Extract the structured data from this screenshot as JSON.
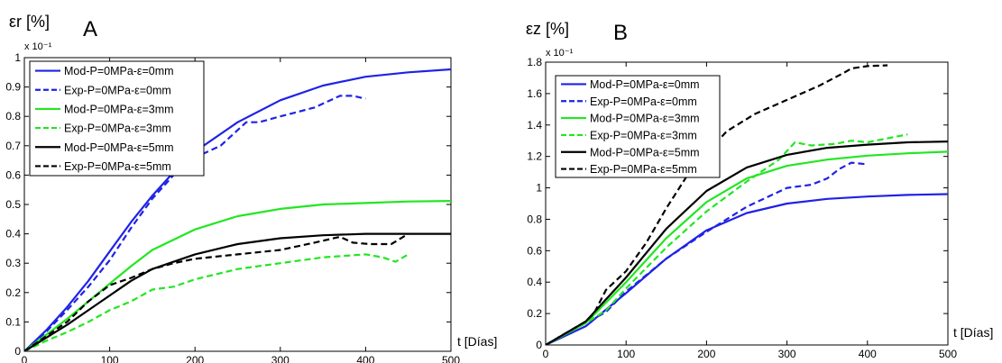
{
  "colors": {
    "blue": "#1f22e6",
    "green": "#22e622",
    "black": "#000000"
  },
  "chart_data": [
    {
      "type": "line",
      "panel_letter": "A",
      "ylabel": "εr [%]",
      "xlabel": "t [Días]",
      "y_multiplier": "x 10⁻¹",
      "xlim": [
        0,
        500
      ],
      "ylim": [
        0,
        1
      ],
      "xticks": [
        "0",
        "100",
        "200",
        "300",
        "400",
        "500"
      ],
      "yticks": [
        "0",
        "0.1",
        "0.2",
        "0.3",
        "0.4",
        "0.5",
        "0.6",
        "0.7",
        "0.8",
        "0.9",
        "1"
      ],
      "legend_position": "top-left",
      "series": [
        {
          "name": "Mod-P=0MPa-ε=0mm",
          "color": "#1f22e6",
          "dash": false,
          "points": [
            [
              0,
              0
            ],
            [
              25,
              0.07
            ],
            [
              50,
              0.15
            ],
            [
              75,
              0.24
            ],
            [
              100,
              0.34
            ],
            [
              125,
              0.44
            ],
            [
              150,
              0.53
            ],
            [
              175,
              0.61
            ],
            [
              200,
              0.68
            ],
            [
              250,
              0.78
            ],
            [
              300,
              0.855
            ],
            [
              350,
              0.905
            ],
            [
              400,
              0.935
            ],
            [
              450,
              0.95
            ],
            [
              500,
              0.96
            ]
          ]
        },
        {
          "name": "Exp-P=0MPa-ε=0mm",
          "color": "#1f22e6",
          "dash": true,
          "points": [
            [
              0,
              0
            ],
            [
              25,
              0.065
            ],
            [
              50,
              0.14
            ],
            [
              75,
              0.22
            ],
            [
              100,
              0.31
            ],
            [
              125,
              0.42
            ],
            [
              150,
              0.52
            ],
            [
              175,
              0.6
            ],
            [
              200,
              0.66
            ],
            [
              230,
              0.7
            ],
            [
              260,
              0.78
            ],
            [
              275,
              0.78
            ],
            [
              300,
              0.8
            ],
            [
              340,
              0.83
            ],
            [
              370,
              0.87
            ],
            [
              385,
              0.87
            ],
            [
              400,
              0.86
            ]
          ]
        },
        {
          "name": "Mod-P=0MPa-ε=3mm",
          "color": "#22e622",
          "dash": false,
          "points": [
            [
              0,
              0
            ],
            [
              25,
              0.055
            ],
            [
              50,
              0.11
            ],
            [
              75,
              0.17
            ],
            [
              100,
              0.23
            ],
            [
              125,
              0.29
            ],
            [
              150,
              0.345
            ],
            [
              200,
              0.415
            ],
            [
              250,
              0.46
            ],
            [
              300,
              0.485
            ],
            [
              350,
              0.5
            ],
            [
              400,
              0.505
            ],
            [
              450,
              0.51
            ],
            [
              500,
              0.512
            ]
          ]
        },
        {
          "name": "Exp-P=0MPa-ε=3mm",
          "color": "#22e622",
          "dash": true,
          "points": [
            [
              0,
              0
            ],
            [
              25,
              0.035
            ],
            [
              50,
              0.065
            ],
            [
              75,
              0.1
            ],
            [
              100,
              0.14
            ],
            [
              125,
              0.17
            ],
            [
              150,
              0.21
            ],
            [
              175,
              0.22
            ],
            [
              200,
              0.245
            ],
            [
              250,
              0.28
            ],
            [
              300,
              0.3
            ],
            [
              350,
              0.32
            ],
            [
              400,
              0.33
            ],
            [
              420,
              0.32
            ],
            [
              435,
              0.305
            ],
            [
              450,
              0.33
            ]
          ]
        },
        {
          "name": "Mod-P=0MPa-ε=5mm",
          "color": "#000000",
          "dash": false,
          "points": [
            [
              0,
              0
            ],
            [
              25,
              0.045
            ],
            [
              50,
              0.09
            ],
            [
              75,
              0.14
            ],
            [
              100,
              0.19
            ],
            [
              125,
              0.24
            ],
            [
              150,
              0.28
            ],
            [
              200,
              0.33
            ],
            [
              250,
              0.365
            ],
            [
              300,
              0.385
            ],
            [
              350,
              0.395
            ],
            [
              400,
              0.4
            ],
            [
              500,
              0.4
            ]
          ]
        },
        {
          "name": "Exp-P=0MPa-ε=5mm",
          "color": "#000000",
          "dash": true,
          "points": [
            [
              0,
              0
            ],
            [
              50,
              0.1
            ],
            [
              75,
              0.17
            ],
            [
              100,
              0.225
            ],
            [
              125,
              0.25
            ],
            [
              150,
              0.28
            ],
            [
              175,
              0.3
            ],
            [
              200,
              0.315
            ],
            [
              250,
              0.33
            ],
            [
              300,
              0.345
            ],
            [
              340,
              0.37
            ],
            [
              370,
              0.39
            ],
            [
              385,
              0.37
            ],
            [
              405,
              0.365
            ],
            [
              430,
              0.365
            ],
            [
              450,
              0.4
            ]
          ]
        }
      ]
    },
    {
      "type": "line",
      "panel_letter": "B",
      "ylabel": "εz [%]",
      "xlabel": "t [Días]",
      "y_multiplier": "x 10⁻¹",
      "xlim": [
        0,
        500
      ],
      "ylim": [
        0,
        1.8
      ],
      "xticks": [
        "0",
        "100",
        "200",
        "300",
        "400",
        "500"
      ],
      "yticks": [
        "0",
        "0.2",
        "0.4",
        "0.6",
        "0.8",
        "1",
        "1.2",
        "1.4",
        "1.6",
        "1.8"
      ],
      "legend_position": "top-left",
      "series": [
        {
          "name": "Mod-P=0MPa-ε=0mm",
          "color": "#1f22e6",
          "dash": false,
          "points": [
            [
              0,
              0
            ],
            [
              50,
              0.12
            ],
            [
              100,
              0.33
            ],
            [
              150,
              0.55
            ],
            [
              200,
              0.73
            ],
            [
              250,
              0.84
            ],
            [
              300,
              0.9
            ],
            [
              350,
              0.93
            ],
            [
              400,
              0.945
            ],
            [
              450,
              0.955
            ],
            [
              500,
              0.96
            ]
          ]
        },
        {
          "name": "Exp-P=0MPa-ε=0mm",
          "color": "#1f22e6",
          "dash": true,
          "points": [
            [
              0,
              0
            ],
            [
              50,
              0.14
            ],
            [
              75,
              0.21
            ],
            [
              100,
              0.34
            ],
            [
              150,
              0.55
            ],
            [
              200,
              0.72
            ],
            [
              250,
              0.88
            ],
            [
              300,
              1.0
            ],
            [
              330,
              1.02
            ],
            [
              350,
              1.06
            ],
            [
              365,
              1.12
            ],
            [
              380,
              1.16
            ],
            [
              400,
              1.15
            ]
          ]
        },
        {
          "name": "Mod-P=0MPa-ε=3mm",
          "color": "#22e622",
          "dash": false,
          "points": [
            [
              0,
              0
            ],
            [
              50,
              0.14
            ],
            [
              100,
              0.4
            ],
            [
              150,
              0.68
            ],
            [
              200,
              0.91
            ],
            [
              250,
              1.06
            ],
            [
              300,
              1.14
            ],
            [
              350,
              1.18
            ],
            [
              400,
              1.205
            ],
            [
              450,
              1.22
            ],
            [
              500,
              1.23
            ]
          ]
        },
        {
          "name": "Exp-P=0MPa-ε=3mm",
          "color": "#22e622",
          "dash": true,
          "points": [
            [
              0,
              0
            ],
            [
              50,
              0.14
            ],
            [
              75,
              0.22
            ],
            [
              100,
              0.36
            ],
            [
              150,
              0.62
            ],
            [
              200,
              0.85
            ],
            [
              250,
              1.04
            ],
            [
              290,
              1.18
            ],
            [
              310,
              1.29
            ],
            [
              330,
              1.27
            ],
            [
              360,
              1.28
            ],
            [
              380,
              1.3
            ],
            [
              400,
              1.29
            ],
            [
              430,
              1.32
            ],
            [
              450,
              1.34
            ]
          ]
        },
        {
          "name": "Mod-P=0MPa-ε=5mm",
          "color": "#000000",
          "dash": false,
          "points": [
            [
              0,
              0
            ],
            [
              50,
              0.15
            ],
            [
              100,
              0.43
            ],
            [
              150,
              0.74
            ],
            [
              200,
              0.98
            ],
            [
              250,
              1.13
            ],
            [
              300,
              1.21
            ],
            [
              350,
              1.255
            ],
            [
              400,
              1.275
            ],
            [
              450,
              1.29
            ],
            [
              500,
              1.295
            ]
          ]
        },
        {
          "name": "Exp-P=0MPa-ε=5mm",
          "color": "#000000",
          "dash": true,
          "points": [
            [
              0,
              0
            ],
            [
              50,
              0.15
            ],
            [
              60,
              0.2
            ],
            [
              75,
              0.35
            ],
            [
              100,
              0.47
            ],
            [
              125,
              0.65
            ],
            [
              150,
              0.87
            ],
            [
              175,
              1.07
            ],
            [
              200,
              1.22
            ],
            [
              225,
              1.36
            ],
            [
              260,
              1.47
            ],
            [
              300,
              1.56
            ],
            [
              340,
              1.65
            ],
            [
              370,
              1.73
            ],
            [
              380,
              1.76
            ],
            [
              400,
              1.775
            ],
            [
              425,
              1.78
            ]
          ]
        }
      ]
    }
  ]
}
